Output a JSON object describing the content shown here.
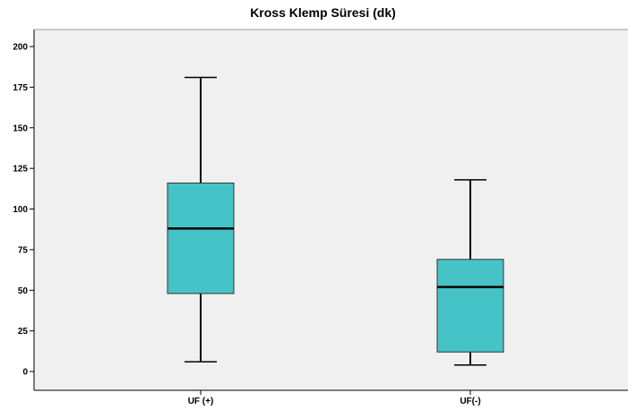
{
  "chart_data": {
    "type": "boxplot",
    "title": "Kross Klemp Süresi (dk)",
    "xlabel": "",
    "ylabel": "",
    "ylim": [
      0,
      200
    ],
    "yticks": [
      0,
      25,
      50,
      75,
      100,
      125,
      150,
      175,
      200
    ],
    "grid": false,
    "categories": [
      "UF (+)",
      "UF(-)"
    ],
    "boxes": [
      {
        "category": "UF (+)",
        "min": 6,
        "q1": 48,
        "median": 88,
        "q3": 116,
        "max": 181
      },
      {
        "category": "UF(-)",
        "min": 4,
        "q1": 12,
        "median": 52,
        "q3": 69,
        "max": 118
      }
    ],
    "colors": {
      "box_fill": "#46c3c6",
      "plot_background": "#f0f0f0",
      "stroke": "#000000"
    }
  }
}
